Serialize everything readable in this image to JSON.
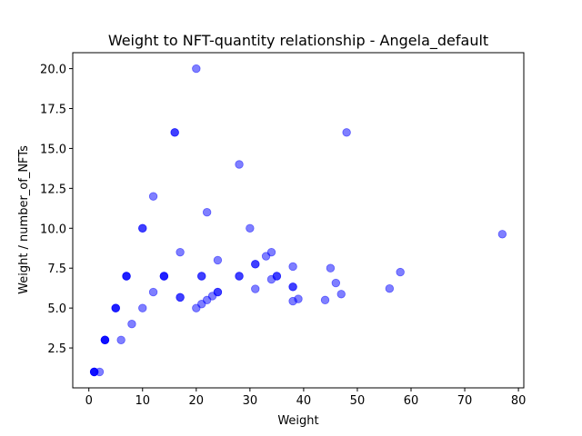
{
  "chart_data": {
    "type": "scatter",
    "title": "Weight to NFT-quantity relationship - Angela_default",
    "xlabel": "Weight",
    "ylabel": "Weight / number_of_NFTs",
    "xlim": [
      -3,
      81
    ],
    "ylim": [
      0,
      21
    ],
    "xticks": [
      0,
      10,
      20,
      30,
      40,
      50,
      60,
      70,
      80
    ],
    "yticks": [
      2.5,
      5.0,
      7.5,
      10.0,
      12.5,
      15.0,
      17.5,
      20.0
    ],
    "ytick_labels": [
      "2.5",
      "5.0",
      "7.5",
      "10.0",
      "12.5",
      "15.0",
      "17.5",
      "20.0"
    ],
    "grid": false,
    "marker_color": "#0000ff",
    "marker_alpha": 0.5,
    "series": [
      {
        "x": [
          1,
          1,
          1,
          1,
          2,
          3,
          3,
          3,
          3,
          5,
          5,
          5,
          6,
          7,
          7,
          7,
          8,
          10,
          10,
          10,
          12,
          12,
          14,
          14,
          14,
          16,
          16,
          17,
          17,
          17,
          20,
          20,
          21,
          21,
          21,
          22,
          22,
          23,
          24,
          24,
          24,
          28,
          28,
          28,
          30,
          31,
          31,
          31,
          33,
          34,
          34,
          35,
          35,
          38,
          38,
          38,
          38,
          39,
          44,
          45,
          46,
          47,
          48,
          56,
          58,
          77
        ],
        "y": [
          1,
          1,
          1,
          1,
          1,
          3,
          3,
          3,
          3,
          5,
          5,
          5,
          3,
          7,
          7,
          7,
          4,
          10,
          10,
          5,
          12,
          6,
          7,
          7,
          7,
          16,
          16,
          8.5,
          5.67,
          5.67,
          20,
          5,
          7,
          7,
          5.25,
          11,
          5.5,
          5.75,
          8,
          6,
          6,
          14,
          7,
          7,
          10,
          7.75,
          7.75,
          6.2,
          8.25,
          8.5,
          6.8,
          7,
          7,
          7.6,
          6.33,
          6.33,
          5.43,
          5.57,
          5.5,
          7.5,
          6.57,
          5.875,
          16,
          6.22,
          7.25,
          9.63
        ]
      }
    ]
  }
}
